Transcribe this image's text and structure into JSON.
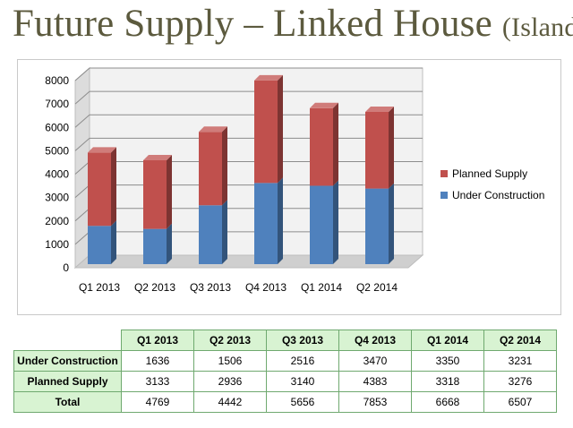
{
  "title": {
    "main": "Future Supply – Linked House",
    "suffix": "(Island)"
  },
  "chart_data": {
    "type": "bar",
    "stacked": true,
    "style": "3d",
    "categories": [
      "Q1 2013",
      "Q2 2013",
      "Q3 2013",
      "Q4 2013",
      "Q1 2014",
      "Q2 2014"
    ],
    "series": [
      {
        "name": "Under Construction",
        "values": [
          1636,
          1506,
          2516,
          3470,
          3350,
          3231
        ],
        "color": "#4f81bd"
      },
      {
        "name": "Planned Supply",
        "values": [
          3133,
          2936,
          3140,
          4383,
          3318,
          3276
        ],
        "color": "#c0504d"
      }
    ],
    "ylim": [
      0,
      8000
    ],
    "yticks": [
      "0",
      "1000",
      "2000",
      "3000",
      "4000",
      "5000",
      "6000",
      "7000",
      "8000"
    ],
    "grid": true,
    "legend_position": "right"
  },
  "table": {
    "headers": [
      "Q1 2013",
      "Q2 2013",
      "Q3 2013",
      "Q4 2013",
      "Q1 2014",
      "Q2 2014"
    ],
    "rows": [
      {
        "label": "Under Construction",
        "values": [
          "1636",
          "1506",
          "2516",
          "3470",
          "3350",
          "3231"
        ]
      },
      {
        "label": "Planned Supply",
        "values": [
          "3133",
          "2936",
          "3140",
          "4383",
          "3318",
          "3276"
        ]
      },
      {
        "label": "Total",
        "values": [
          "4769",
          "4442",
          "5656",
          "7853",
          "6668",
          "6507"
        ]
      }
    ]
  },
  "colors": {
    "title": "#5c5a3e",
    "table_header_bg": "#d8f3d2",
    "table_border": "#6fa96f"
  }
}
